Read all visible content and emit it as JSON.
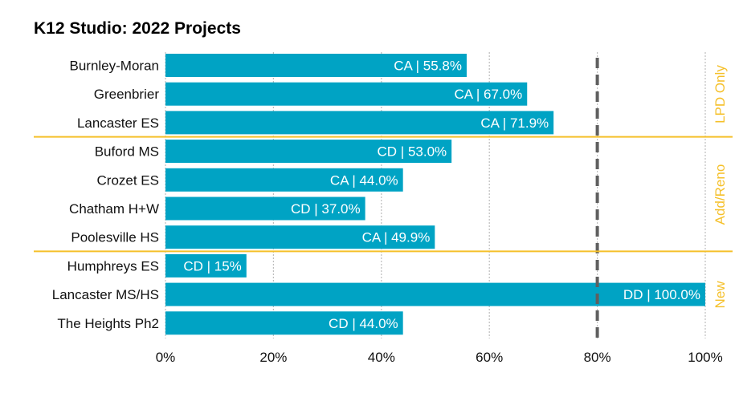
{
  "chart_data": {
    "type": "bar",
    "orientation": "horizontal",
    "title": "K12 Studio: 2022 Projects",
    "xlabel": "",
    "ylabel": "",
    "xlim": [
      0,
      100
    ],
    "x_ticks": [
      "0%",
      "20%",
      "40%",
      "60%",
      "80%",
      "100%"
    ],
    "grid": "vertical dotted",
    "reference_line": {
      "value": 80,
      "style": "dashed",
      "color": "#5f5f5f"
    },
    "bar_color": "#00A3C4",
    "group_color": "#F5C02A",
    "categories": [
      "Burnley-Moran",
      "Greenbrier",
      "Lancaster ES",
      "Buford MS",
      "Crozet ES",
      "Chatham H+W",
      "Poolesville HS",
      "Humphreys ES",
      "Lancaster MS/HS",
      "The Heights Ph2"
    ],
    "values": [
      55.8,
      67.0,
      71.9,
      53.0,
      44.0,
      37.0,
      49.9,
      15,
      100.0,
      44.0
    ],
    "data_labels": [
      "CA | 55.8%",
      "CA | 67.0%",
      "CA | 71.9%",
      "CD | 53.0%",
      "CA | 44.0%",
      "CD | 37.0%",
      "CA | 49.9%",
      "CD | 15%",
      "DD | 100.0%",
      "CD | 44.0%"
    ],
    "groups": [
      {
        "label": "LPD Only",
        "start": 0,
        "end": 2
      },
      {
        "label": "Add/Reno",
        "start": 3,
        "end": 6
      },
      {
        "label": "New",
        "start": 7,
        "end": 9
      }
    ]
  }
}
